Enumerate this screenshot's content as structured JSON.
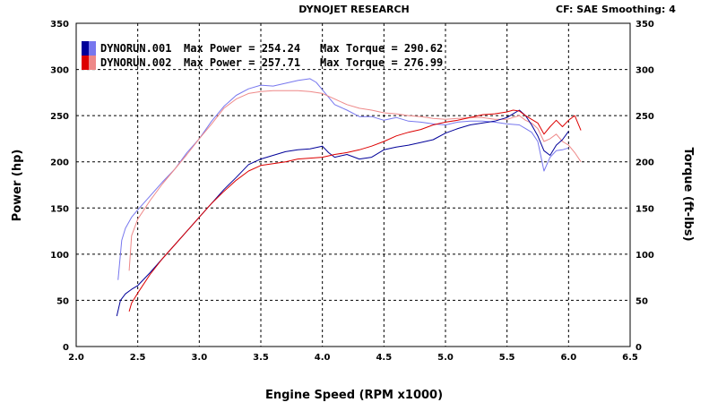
{
  "header": {
    "title": "DYNOJET RESEARCH",
    "settings": "CF: SAE  Smoothing: 4"
  },
  "chart_data": {
    "type": "line",
    "title": "DYNOJET RESEARCH",
    "xlabel": "Engine Speed (RPM x1000)",
    "ylabel": "Power (hp)",
    "y2label": "Torque (ft-lbs)",
    "xlim": [
      2.0,
      6.5
    ],
    "ylim": [
      0,
      350
    ],
    "y2lim": [
      0,
      350
    ],
    "xticks": [
      "2.0",
      "2.5",
      "3.0",
      "3.5",
      "4.0",
      "4.5",
      "5.0",
      "5.5",
      "6.0",
      "6.5"
    ],
    "yticks": [
      "0",
      "50",
      "100",
      "150",
      "200",
      "250",
      "300",
      "350"
    ],
    "y2ticks": [
      "0",
      "50",
      "100",
      "150",
      "200",
      "250",
      "300",
      "350"
    ],
    "grid": true,
    "legend": [
      {
        "run": "DYNORUN.001",
        "max_power": "Max Power = 254.24",
        "max_torque": "Max Torque = 290.62",
        "color_power": "#000099",
        "color_torque": "#7777ee"
      },
      {
        "run": "DYNORUN.002",
        "max_power": "Max Power = 257.71",
        "max_torque": "Max Torque = 276.99",
        "color_power": "#dd0000",
        "color_torque": "#ee8888"
      }
    ],
    "series": [
      {
        "run": "DYNORUN.001",
        "kind": "power",
        "color": "#000099",
        "x": [
          2.33,
          2.36,
          2.4,
          2.45,
          2.5,
          2.6,
          2.7,
          2.8,
          2.9,
          3.0,
          3.1,
          3.2,
          3.3,
          3.4,
          3.5,
          3.6,
          3.7,
          3.8,
          3.9,
          4.0,
          4.05,
          4.1,
          4.2,
          4.3,
          4.4,
          4.5,
          4.6,
          4.7,
          4.8,
          4.9,
          5.0,
          5.1,
          5.2,
          5.3,
          5.4,
          5.5,
          5.55,
          5.6,
          5.65,
          5.7,
          5.75,
          5.8,
          5.85,
          5.9,
          5.95,
          6.0
        ],
        "y": [
          33,
          50,
          57,
          62,
          66,
          80,
          95,
          110,
          125,
          140,
          155,
          170,
          183,
          197,
          203,
          207,
          211,
          213,
          214,
          217,
          210,
          205,
          208,
          203,
          205,
          213,
          216,
          218,
          221,
          224,
          231,
          236,
          240,
          242,
          244,
          248,
          252,
          256,
          250,
          240,
          228,
          212,
          207,
          218,
          224,
          233
        ]
      },
      {
        "run": "DYNORUN.002",
        "kind": "power",
        "color": "#dd0000",
        "x": [
          2.43,
          2.45,
          2.5,
          2.6,
          2.7,
          2.8,
          2.9,
          3.0,
          3.1,
          3.2,
          3.3,
          3.4,
          3.5,
          3.6,
          3.7,
          3.8,
          3.9,
          4.0,
          4.1,
          4.2,
          4.3,
          4.4,
          4.5,
          4.6,
          4.7,
          4.8,
          4.9,
          5.0,
          5.1,
          5.2,
          5.3,
          5.4,
          5.5,
          5.55,
          5.6,
          5.65,
          5.7,
          5.75,
          5.8,
          5.85,
          5.9,
          5.95,
          6.0,
          6.05,
          6.1
        ],
        "y": [
          38,
          47,
          58,
          78,
          95,
          110,
          125,
          140,
          155,
          168,
          180,
          190,
          196,
          198,
          200,
          203,
          204,
          205,
          208,
          210,
          213,
          217,
          222,
          228,
          232,
          235,
          240,
          243,
          245,
          248,
          251,
          252,
          254,
          256,
          255,
          250,
          246,
          242,
          230,
          238,
          245,
          238,
          245,
          250,
          234
        ]
      },
      {
        "run": "DYNORUN.001",
        "kind": "torque",
        "color": "#7777ee",
        "x": [
          2.34,
          2.37,
          2.4,
          2.45,
          2.5,
          2.6,
          2.7,
          2.8,
          2.9,
          3.0,
          3.1,
          3.2,
          3.3,
          3.4,
          3.5,
          3.6,
          3.7,
          3.8,
          3.9,
          3.95,
          4.0,
          4.1,
          4.2,
          4.3,
          4.4,
          4.5,
          4.6,
          4.7,
          4.8,
          4.9,
          5.0,
          5.1,
          5.2,
          5.3,
          5.4,
          5.5,
          5.6,
          5.65,
          5.7,
          5.75,
          5.8,
          5.85,
          5.9,
          5.95,
          6.0
        ],
        "y": [
          72,
          115,
          128,
          140,
          148,
          163,
          178,
          192,
          210,
          225,
          244,
          260,
          272,
          279,
          283,
          282,
          285,
          288,
          290,
          286,
          278,
          262,
          256,
          249,
          249,
          245,
          248,
          244,
          243,
          241,
          240,
          243,
          244,
          244,
          243,
          241,
          240,
          236,
          232,
          222,
          190,
          205,
          212,
          213,
          215
        ]
      },
      {
        "run": "DYNORUN.002",
        "kind": "torque",
        "color": "#ee8888",
        "x": [
          2.43,
          2.45,
          2.5,
          2.6,
          2.7,
          2.8,
          2.9,
          3.0,
          3.1,
          3.2,
          3.3,
          3.4,
          3.5,
          3.6,
          3.7,
          3.8,
          3.9,
          4.0,
          4.1,
          4.2,
          4.3,
          4.4,
          4.5,
          4.6,
          4.7,
          4.8,
          4.9,
          5.0,
          5.1,
          5.2,
          5.3,
          5.4,
          5.5,
          5.55,
          5.6,
          5.65,
          5.7,
          5.75,
          5.8,
          5.85,
          5.9,
          5.95,
          6.0,
          6.05,
          6.1
        ],
        "y": [
          82,
          120,
          138,
          158,
          176,
          192,
          208,
          225,
          241,
          258,
          268,
          274,
          276,
          277,
          277,
          277,
          276,
          274,
          268,
          262,
          258,
          256,
          253,
          252,
          250,
          249,
          247,
          246,
          247,
          248,
          248,
          246,
          246,
          248,
          250,
          245,
          242,
          236,
          222,
          225,
          230,
          222,
          218,
          210,
          200
        ]
      }
    ]
  }
}
